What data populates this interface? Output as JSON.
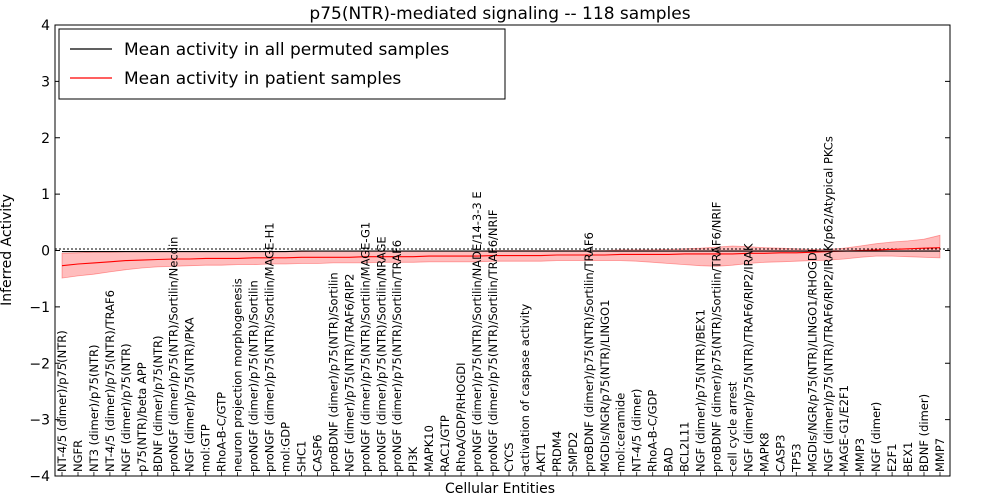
{
  "chart_data": {
    "type": "line",
    "title": "p75(NTR)-mediated signaling -- 118 samples",
    "xlabel": "Cellular Entities",
    "ylabel": "Inferred Activity",
    "ylim": [
      -4,
      4
    ],
    "yticks": [
      -4,
      -3,
      -2,
      -1,
      0,
      1,
      2,
      3,
      4
    ],
    "grid": false,
    "legend_position": "top-left",
    "categories": [
      "NT-4/5 (dimer)/p75(NTR)",
      "NGFR",
      "NT3 (dimer)/p75(NTR)",
      "NT-4/5 (dimer)/p75(NTR)/TRAF6",
      "NGF (dimer)/p75(NTR)",
      "p75(NTR)/beta APP",
      "BDNF (dimer)/p75(NTR)",
      "proNGF (dimer)/p75(NTR)/Sortilin/Necdin",
      "NGF (dimer)/p75(NTR)/PKA",
      "mol:GTP",
      "RhoA-B-C/GTP",
      "neuron projection morphogenesis",
      "proNGF (dimer)/p75(NTR)/Sortilin",
      "proNGF (dimer)/p75(NTR)/Sortilin/MAGE-H1",
      "mol:GDP",
      "SHC1",
      "CASP6",
      "proBDNF (dimer)/p75(NTR)/Sortilin",
      "NGF (dimer)/p75(NTR)/TRAF6/RIP2",
      "proNGF (dimer)/p75(NTR)/Sortilin/MAGE-G1",
      "proNGF (dimer)/p75(NTR)/Sortilin/NRAGE",
      "proNGF (dimer)/p75(NTR)/Sortilin/TRAF6",
      "PI3K",
      "MAPK10",
      "RAC1/GTP",
      "RhoA/GDP/RHOGDI",
      "proNGF (dimer)/p75(NTR)/Sortilin/NADE/14-3-3 E",
      "proNGF (dimer)/p75(NTR)/Sortilin/TRAF6/NRIF",
      "CYCS",
      "activation of caspase activity",
      "AKT1",
      "PRDM4",
      "SMPD2",
      "proBDNF (dimer)/p75(NTR)/Sortilin/TRAF6",
      "MGDIs/NGR/p75(NTR)/LINGO1",
      "mol:ceramide",
      "NT-4/5 (dimer)",
      "RhoA-B-C/GDP",
      "BAD",
      "BCL2L11",
      "NGF (dimer)/p75(NTR)/BEX1",
      "proBDNF (dimer)/p75(NTR)/Sortilin/TRAF6/NRIF",
      "cell cycle arrest",
      "NGF (dimer)/p75(NTR)/TRAF6/RIP2/IRAK",
      "MAPK8",
      "CASP3",
      "TP53",
      "MGDIs/NGR/p75(NTR)/LINGO1/RHOGDI",
      "NGF (dimer)/p75(NTR)/TRAF6/RIP2/IRAK/p62/Atypical PKCs",
      "MAGE-G1/E2F1",
      "MMP3",
      "NGF (dimer)",
      "E2F1",
      "BEX1",
      "BDNF (dimer)",
      "MMP7"
    ],
    "series": [
      {
        "name": "Mean activity in all permuted samples",
        "color": "#000000",
        "values": [
          -0.02,
          -0.02,
          -0.02,
          -0.02,
          -0.02,
          -0.02,
          -0.02,
          -0.02,
          -0.02,
          -0.02,
          -0.02,
          -0.02,
          -0.02,
          -0.02,
          -0.02,
          -0.01,
          -0.01,
          -0.01,
          -0.01,
          -0.01,
          -0.01,
          -0.01,
          -0.01,
          -0.01,
          -0.01,
          -0.01,
          -0.01,
          -0.01,
          -0.01,
          -0.01,
          -0.01,
          -0.01,
          -0.01,
          -0.01,
          -0.01,
          -0.01,
          -0.01,
          -0.01,
          -0.01,
          -0.01,
          -0.01,
          -0.01,
          -0.01,
          -0.01,
          -0.01,
          -0.01,
          -0.01,
          -0.01,
          -0.01,
          -0.01,
          -0.01,
          -0.01,
          -0.01,
          -0.01,
          -0.01,
          -0.01
        ]
      },
      {
        "name": "Mean activity in patient samples",
        "color": "#ff0000",
        "band_color": "#ff9999",
        "values": [
          -0.27,
          -0.24,
          -0.22,
          -0.2,
          -0.18,
          -0.17,
          -0.16,
          -0.15,
          -0.15,
          -0.14,
          -0.14,
          -0.14,
          -0.13,
          -0.13,
          -0.13,
          -0.12,
          -0.12,
          -0.12,
          -0.12,
          -0.11,
          -0.11,
          -0.11,
          -0.11,
          -0.1,
          -0.1,
          -0.1,
          -0.1,
          -0.09,
          -0.09,
          -0.09,
          -0.09,
          -0.08,
          -0.08,
          -0.08,
          -0.08,
          -0.07,
          -0.07,
          -0.07,
          -0.07,
          -0.06,
          -0.06,
          -0.06,
          -0.06,
          -0.05,
          -0.05,
          -0.04,
          -0.04,
          -0.03,
          -0.02,
          -0.01,
          0.0,
          0.01,
          0.02,
          0.03,
          0.04,
          0.05
        ],
        "upper": [
          -0.05,
          -0.04,
          -0.03,
          -0.03,
          -0.02,
          -0.02,
          -0.02,
          -0.02,
          -0.02,
          -0.02,
          -0.02,
          -0.02,
          -0.02,
          -0.02,
          -0.02,
          -0.02,
          -0.01,
          -0.01,
          -0.01,
          -0.01,
          -0.01,
          -0.01,
          -0.01,
          -0.01,
          -0.01,
          -0.01,
          -0.01,
          0.0,
          0.0,
          0.0,
          0.0,
          0.0,
          0.0,
          0.0,
          0.0,
          0.01,
          0.01,
          0.01,
          0.02,
          0.03,
          0.04,
          0.06,
          0.08,
          0.07,
          0.05,
          0.04,
          0.03,
          0.02,
          0.02,
          0.04,
          0.08,
          0.12,
          0.15,
          0.17,
          0.2,
          0.27
        ],
        "lower": [
          -0.49,
          -0.45,
          -0.42,
          -0.38,
          -0.34,
          -0.31,
          -0.29,
          -0.28,
          -0.27,
          -0.26,
          -0.26,
          -0.25,
          -0.25,
          -0.24,
          -0.24,
          -0.23,
          -0.23,
          -0.22,
          -0.22,
          -0.22,
          -0.21,
          -0.21,
          -0.21,
          -0.2,
          -0.2,
          -0.2,
          -0.2,
          -0.19,
          -0.19,
          -0.19,
          -0.19,
          -0.18,
          -0.18,
          -0.18,
          -0.18,
          -0.18,
          -0.19,
          -0.21,
          -0.23,
          -0.25,
          -0.27,
          -0.28,
          -0.26,
          -0.23,
          -0.21,
          -0.2,
          -0.19,
          -0.18,
          -0.17,
          -0.15,
          -0.12,
          -0.1,
          -0.1,
          -0.11,
          -0.12,
          -0.13
        ]
      }
    ]
  }
}
